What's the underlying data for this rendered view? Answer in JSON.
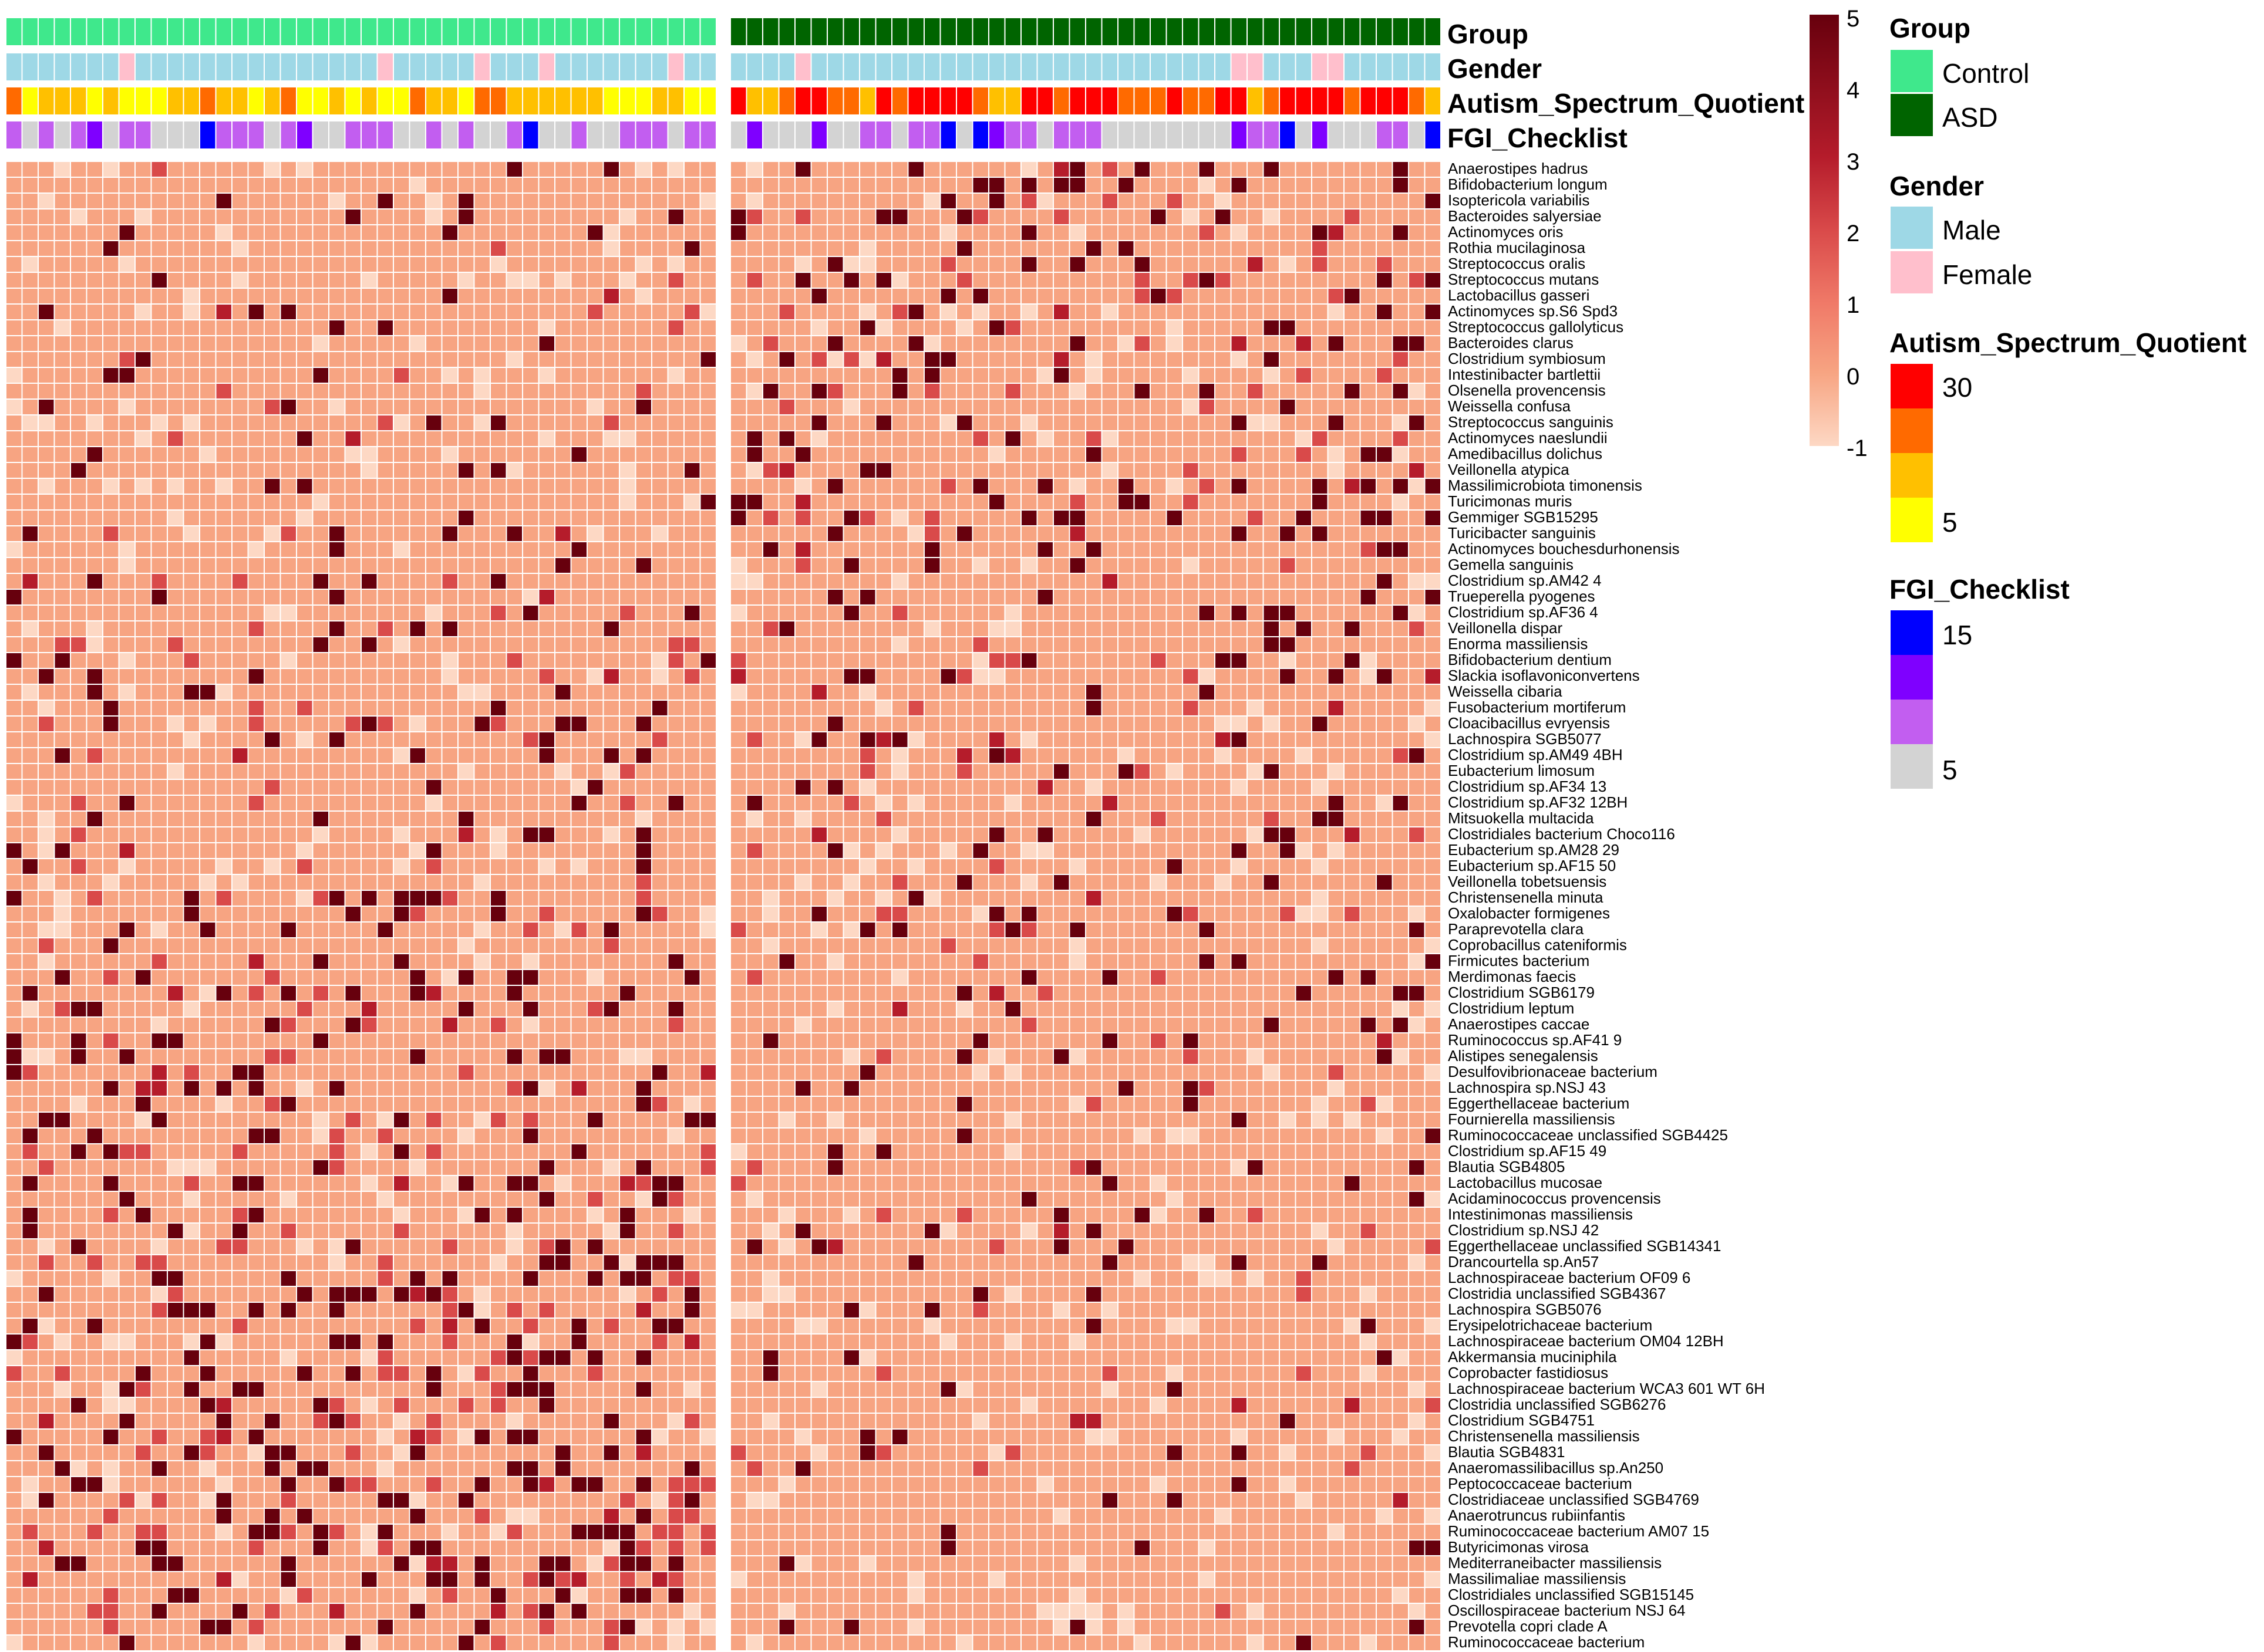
{
  "chart_data": {
    "type": "heatmap",
    "title": "",
    "n_control": 44,
    "n_asd": 44,
    "annotation_rows": [
      "Group",
      "Gender",
      "Autism_Spectrum_Quotient",
      "FGI_Checklist"
    ],
    "row_labels": [
      "Anaerostipes hadrus",
      "Bifidobacterium longum",
      "Isoptericola variabilis",
      "Bacteroides salyersiae",
      "Actinomyces oris",
      "Rothia mucilaginosa",
      "Streptococcus oralis",
      "Streptococcus mutans",
      "Lactobacillus gasseri",
      "Actinomyces sp.S6 Spd3",
      "Streptococcus gallolyticus",
      "Bacteroides clarus",
      "Clostridium symbiosum",
      "Intestinibacter bartlettii",
      "Olsenella provencensis",
      "Weissella confusa",
      "Streptococcus sanguinis",
      "Actinomyces naeslundii",
      "Amedibacillus dolichus",
      "Veillonella atypica",
      "Massilimicrobiota timonensis",
      "Turicimonas muris",
      "Gemmiger SGB15295",
      "Turicibacter sanguinis",
      "Actinomyces bouchesdurhonensis",
      "Gemella sanguinis",
      "Clostridium sp.AM42 4",
      "Trueperella pyogenes",
      "Clostridium sp.AF36 4",
      "Veillonella dispar",
      "Enorma massiliensis",
      "Bifidobacterium dentium",
      "Slackia isoflavoniconvertens",
      "Weissella cibaria",
      "Fusobacterium mortiferum",
      "Cloacibacillus evryensis",
      "Lachnospira SGB5077",
      "Clostridium sp.AM49 4BH",
      "Eubacterium limosum",
      "Clostridium sp.AF34 13",
      "Clostridium sp.AF32 12BH",
      "Mitsuokella multacida",
      "Clostridiales bacterium Choco116",
      "Eubacterium sp.AM28 29",
      "Eubacterium sp.AF15 50",
      "Veillonella tobetsuensis",
      "Christensenella minuta",
      "Oxalobacter formigenes",
      "Paraprevotella clara",
      "Coprobacillus cateniformis",
      "Firmicutes bacterium",
      "Merdimonas faecis",
      "Clostridium SGB6179",
      "Clostridium leptum",
      "Anaerostipes caccae",
      "Ruminococcus sp.AF41 9",
      "Alistipes senegalensis",
      "Desulfovibrionaceae bacterium",
      "Lachnospira sp.NSJ 43",
      "Eggerthellaceae bacterium",
      "Fournierella massiliensis",
      "Ruminococcaceae unclassified SGB4425",
      "Clostridium sp.AF15 49",
      "Blautia SGB4805",
      "Lactobacillus mucosae",
      "Acidaminococcus provencensis",
      "Intestinimonas massiliensis",
      "Clostridium sp.NSJ 42",
      "Eggerthellaceae unclassified SGB14341",
      "Drancourtella sp.An57",
      "Lachnospiraceae bacterium OF09 6",
      "Clostridia unclassified SGB4367",
      "Lachnospira SGB5076",
      "Erysipelotrichaceae bacterium",
      "Lachnospiraceae bacterium OM04 12BH",
      "Akkermansia muciniphila",
      "Coprobacter fastidiosus",
      "Lachnospiraceae bacterium WCA3 601 WT 6H",
      "Clostridia unclassified SGB6276",
      "Clostridium SGB4751",
      "Christensenella massiliensis",
      "Blautia SGB4831",
      "Anaeromassilibacillus sp.An250",
      "Peptococcaceae bacterium",
      "Clostridiaceae unclassified SGB4769",
      "Anaerotruncus rubiinfantis",
      "Ruminococcaceae bacterium AM07 15",
      "Butyricimonas virosa",
      "Mediterraneibacter massiliensis",
      "Massilimaliae massiliensis",
      "Clostridiales unclassified SGB15145",
      "Oscillospiraceae bacterium NSJ 64",
      "Prevotella copri clade A",
      "Ruminococcaceae bacterium"
    ],
    "color_scale": {
      "min": -1,
      "max": 5,
      "ticks": [
        "5",
        "4",
        "3",
        "2",
        "1",
        "0",
        "-1"
      ],
      "colors": [
        "#fdd8c4",
        "#f7a482",
        "#f07a68",
        "#d94a4a",
        "#b51c2b",
        "#67000d"
      ]
    },
    "legends": {
      "group": {
        "title": "Group",
        "items": [
          {
            "label": "Control",
            "color": "#3fe88c"
          },
          {
            "label": "ASD",
            "color": "#006400"
          }
        ]
      },
      "gender": {
        "title": "Gender",
        "items": [
          {
            "label": "Male",
            "color": "#9ed8e6"
          },
          {
            "label": "Female",
            "color": "#ffbfcc"
          }
        ]
      },
      "aq": {
        "title": "Autism_Spectrum_Quotient",
        "high_label": "30",
        "low_label": "5",
        "colors": [
          "#ff0000",
          "#ff6a00",
          "#ffc000",
          "#ffff00"
        ]
      },
      "fgi": {
        "title": "FGI_Checklist",
        "high_label": "15",
        "low_label": "5",
        "colors": [
          "#0000ff",
          "#7f00ff",
          "#c25ef0",
          "#d3d3d3"
        ]
      }
    }
  }
}
